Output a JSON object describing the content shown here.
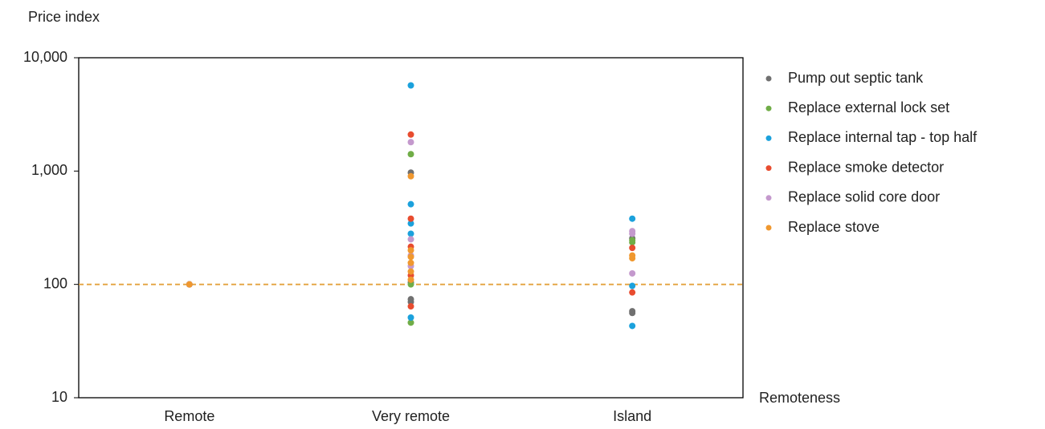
{
  "chart_data": {
    "type": "scatter",
    "y_label": "Price index",
    "x_label": "Remoteness",
    "categories": [
      "Remote",
      "Very remote",
      "Island"
    ],
    "log_y": true,
    "ylim": [
      10,
      10000
    ],
    "yticks": [
      10,
      100,
      {
        "value": 1000,
        "label": "1,000"
      },
      {
        "value": 10000,
        "label": "10,000"
      }
    ],
    "grid": false,
    "legend": "right",
    "reference_line": {
      "value": 100,
      "color": "#e3a23e"
    },
    "series": [
      {
        "name": "Pump out septic tank",
        "color": "#707070",
        "x": [
          "Remote",
          "Very remote",
          "Very remote",
          "Very remote",
          "Very remote",
          "Island",
          "Island",
          "Island"
        ],
        "values": [
          100,
          970,
          104,
          74,
          70,
          255,
          58,
          56
        ]
      },
      {
        "name": "Replace external lock set",
        "color": "#70ad47",
        "x": [
          "Remote",
          "Very remote",
          "Very remote",
          "Very remote",
          "Island",
          "Island"
        ],
        "values": [
          100,
          1410,
          100,
          46,
          245,
          235
        ]
      },
      {
        "name": "Replace internal tap - top half",
        "color": "#1ba1dc",
        "x": [
          "Remote",
          "Very remote",
          "Very remote",
          "Very remote",
          "Very remote",
          "Very remote",
          "Island",
          "Island",
          "Island"
        ],
        "values": [
          100,
          5700,
          510,
          345,
          280,
          51,
          380,
          97,
          43
        ]
      },
      {
        "name": "Replace smoke detector",
        "color": "#e84c2f",
        "x": [
          "Remote",
          "Very remote",
          "Very remote",
          "Very remote",
          "Very remote",
          "Very remote",
          "Island",
          "Island"
        ],
        "values": [
          100,
          2100,
          380,
          215,
          120,
          64,
          210,
          85
        ]
      },
      {
        "name": "Replace solid core door",
        "color": "#c499cd",
        "x": [
          "Remote",
          "Very remote",
          "Very remote",
          "Very remote",
          "Very remote",
          "Island",
          "Island",
          "Island"
        ],
        "values": [
          100,
          1800,
          250,
          180,
          145,
          295,
          280,
          125
        ]
      },
      {
        "name": "Replace stove",
        "color": "#f0982f",
        "x": [
          "Remote",
          "Very remote",
          "Very remote",
          "Very remote",
          "Very remote",
          "Very remote",
          "Very remote",
          "Island",
          "Island"
        ],
        "values": [
          100,
          900,
          200,
          175,
          155,
          130,
          110,
          180,
          170
        ]
      }
    ]
  }
}
